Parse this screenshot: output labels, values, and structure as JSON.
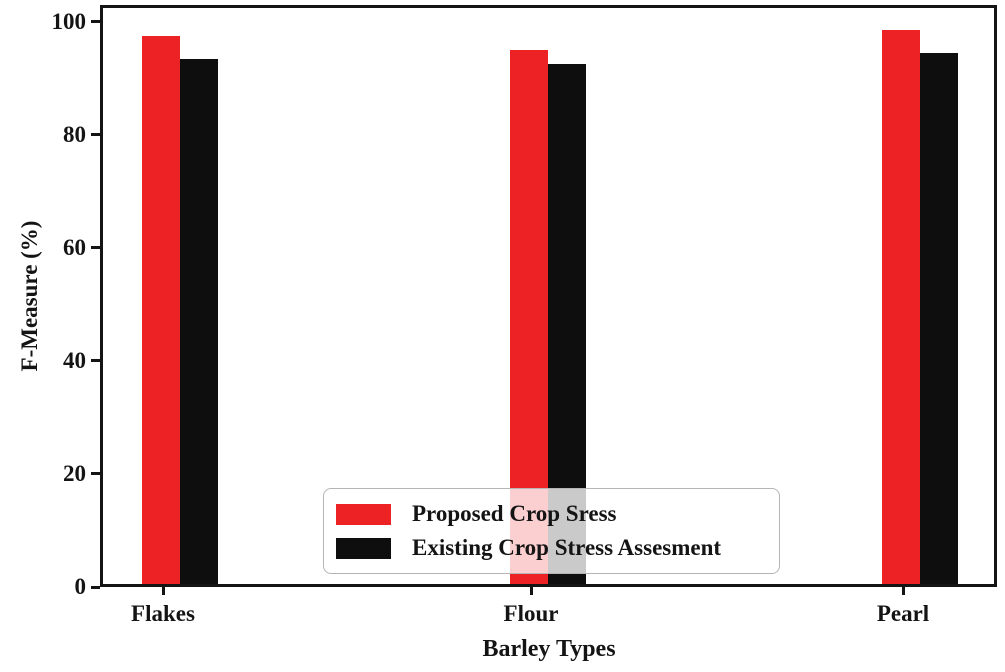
{
  "chart_data": {
    "type": "bar",
    "title": "",
    "xlabel": "Barley Types",
    "ylabel": "F-Measure (%)",
    "categories": [
      "Flakes",
      "Flour",
      "Pearl"
    ],
    "series": [
      {
        "name": "Proposed Crop Sress",
        "color": "#ed2224",
        "values": [
          97.5,
          95,
          98.5
        ]
      },
      {
        "name": "Existing Crop Stress Assesment",
        "color": "#0e0e0e",
        "values": [
          93.5,
          92.5,
          94.5
        ]
      }
    ],
    "ylim": [
      0,
      103
    ],
    "yticks": [
      0,
      20,
      40,
      60,
      80,
      100
    ],
    "grid": false,
    "legend_position": "lower center",
    "colors": {
      "axis": "#141414",
      "background": "#ffffff",
      "legend_border": "#b5b5b5"
    }
  }
}
